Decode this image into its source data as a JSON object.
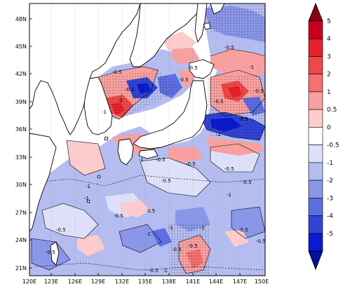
{
  "map": {
    "lat_ticks": [
      "48N",
      "45N",
      "42N",
      "39N",
      "36N",
      "33N",
      "30N",
      "27N",
      "24N",
      "21N"
    ],
    "lon_ticks": [
      "120E",
      "123E",
      "126E",
      "129E",
      "132E",
      "135E",
      "138E",
      "141E",
      "144E",
      "147E",
      "150E"
    ],
    "contour_labels": [
      "-0.5",
      "-0.5",
      "-0.5",
      "-0.5",
      "-0.5",
      "-0.5",
      "-0.5",
      "-0.5",
      "-0.5",
      "-0.5",
      "-1",
      "-1",
      "-1",
      "-1",
      "-1",
      "-1",
      "-2",
      "-2",
      "-0.5",
      "-0.5",
      "-0.5",
      "-0.5",
      "-0.5",
      "-1",
      "-0.5",
      "0.5",
      "-0.5",
      "-1",
      "-2",
      "-0.5",
      "-0.5",
      "-1",
      "-0.5",
      "-0.5"
    ]
  },
  "colorbar": {
    "labels": [
      "5",
      "4",
      "3",
      "2",
      "1",
      "0.5",
      "0",
      "-0.5",
      "-1",
      "-2",
      "-3",
      "-4",
      "-5"
    ],
    "colors": [
      "#c8001e",
      "#e8202c",
      "#f04848",
      "#f57070",
      "#f8a0a0",
      "#fccccc",
      "#ffffff",
      "#dde0f8",
      "#b4bcf0",
      "#8a96e8",
      "#5c6ee0",
      "#3044d8",
      "#0a1ad0"
    ],
    "top_triangle_color": "#8a0012",
    "bottom_triangle_color": "#0010a0"
  }
}
